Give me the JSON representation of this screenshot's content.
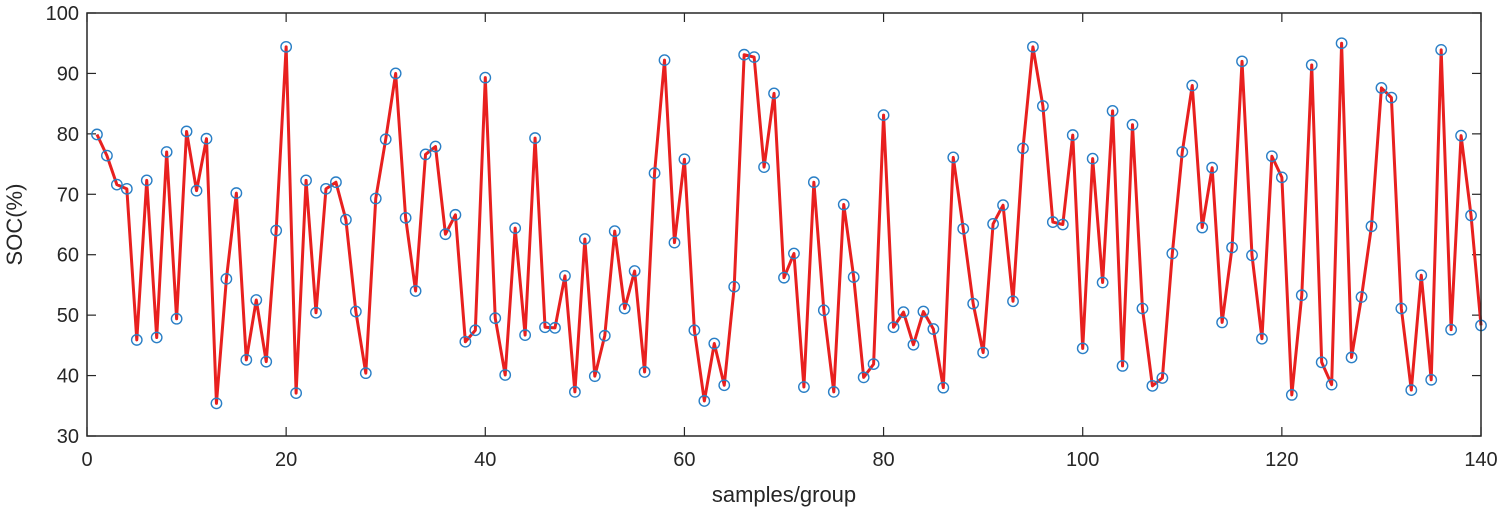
{
  "chart_data": {
    "type": "line",
    "title": "",
    "xlabel": "samples/group",
    "ylabel": "SOC(%)",
    "xlim": [
      0,
      140
    ],
    "ylim": [
      30,
      100
    ],
    "xticks": [
      0,
      20,
      40,
      60,
      80,
      100,
      120,
      140
    ],
    "yticks": [
      30,
      40,
      50,
      60,
      70,
      80,
      90,
      100
    ],
    "grid": false,
    "series": [
      {
        "line_color": "#e8201f",
        "marker": "circle",
        "marker_color": "#2a7fc6",
        "x": [
          1,
          2,
          3,
          4,
          5,
          6,
          7,
          8,
          9,
          10,
          11,
          12,
          13,
          14,
          15,
          16,
          17,
          18,
          19,
          20,
          21,
          22,
          23,
          24,
          25,
          26,
          27,
          28,
          29,
          30,
          31,
          32,
          33,
          34,
          35,
          36,
          37,
          38,
          39,
          40,
          41,
          42,
          43,
          44,
          45,
          46,
          47,
          48,
          49,
          50,
          51,
          52,
          53,
          54,
          55,
          56,
          57,
          58,
          59,
          60,
          61,
          62,
          63,
          64,
          65,
          66,
          67,
          68,
          69,
          70,
          71,
          72,
          73,
          74,
          75,
          76,
          77,
          78,
          79,
          80,
          81,
          82,
          83,
          84,
          85,
          86,
          87,
          88,
          89,
          90,
          91,
          92,
          93,
          94,
          95,
          96,
          97,
          98,
          99,
          100,
          101,
          102,
          103,
          104,
          105,
          106,
          107,
          108,
          109,
          110,
          111,
          112,
          113,
          114,
          115,
          116,
          117,
          118,
          119,
          120,
          121,
          122,
          123,
          124,
          125,
          126,
          127,
          128,
          129,
          130,
          131,
          132,
          133,
          134,
          135,
          136,
          137,
          138,
          139,
          140
        ],
        "y": [
          79.9,
          76.4,
          71.6,
          70.9,
          45.9,
          72.3,
          46.3,
          77.0,
          49.4,
          80.4,
          70.6,
          79.2,
          35.4,
          56.0,
          70.2,
          42.6,
          52.5,
          42.3,
          64.0,
          94.4,
          37.1,
          72.3,
          50.4,
          70.9,
          72.0,
          65.8,
          50.6,
          40.4,
          69.3,
          79.1,
          90.0,
          66.1,
          54.0,
          76.6,
          77.9,
          63.4,
          66.6,
          45.6,
          47.5,
          89.3,
          49.5,
          40.1,
          64.4,
          46.7,
          79.3,
          48.0,
          47.9,
          56.5,
          37.3,
          62.6,
          39.9,
          46.6,
          63.9,
          51.1,
          57.3,
          40.6,
          73.5,
          92.2,
          62.0,
          75.8,
          47.5,
          35.8,
          45.3,
          38.4,
          54.7,
          93.1,
          92.7,
          74.5,
          86.7,
          56.2,
          60.2,
          38.1,
          72.0,
          50.8,
          37.3,
          68.3,
          56.3,
          39.7,
          41.9,
          83.1,
          48.0,
          50.5,
          45.1,
          50.6,
          47.7,
          38.0,
          76.1,
          64.3,
          51.9,
          43.8,
          65.1,
          68.2,
          52.3,
          77.6,
          94.4,
          84.6,
          65.4,
          65.0,
          79.8,
          44.5,
          75.9,
          55.4,
          83.8,
          41.6,
          81.5,
          51.1,
          38.3,
          39.6,
          60.2,
          77.0,
          88.0,
          64.5,
          74.4,
          48.8,
          61.2,
          92.0,
          59.9,
          46.1,
          76.3,
          72.8,
          36.8,
          53.3,
          91.4,
          42.2,
          38.5,
          95.0,
          43.0,
          53.0,
          64.7,
          87.6,
          86.0,
          51.1,
          37.6,
          56.6,
          39.3,
          93.9,
          47.6,
          79.7,
          66.5,
          48.3
        ]
      }
    ]
  }
}
